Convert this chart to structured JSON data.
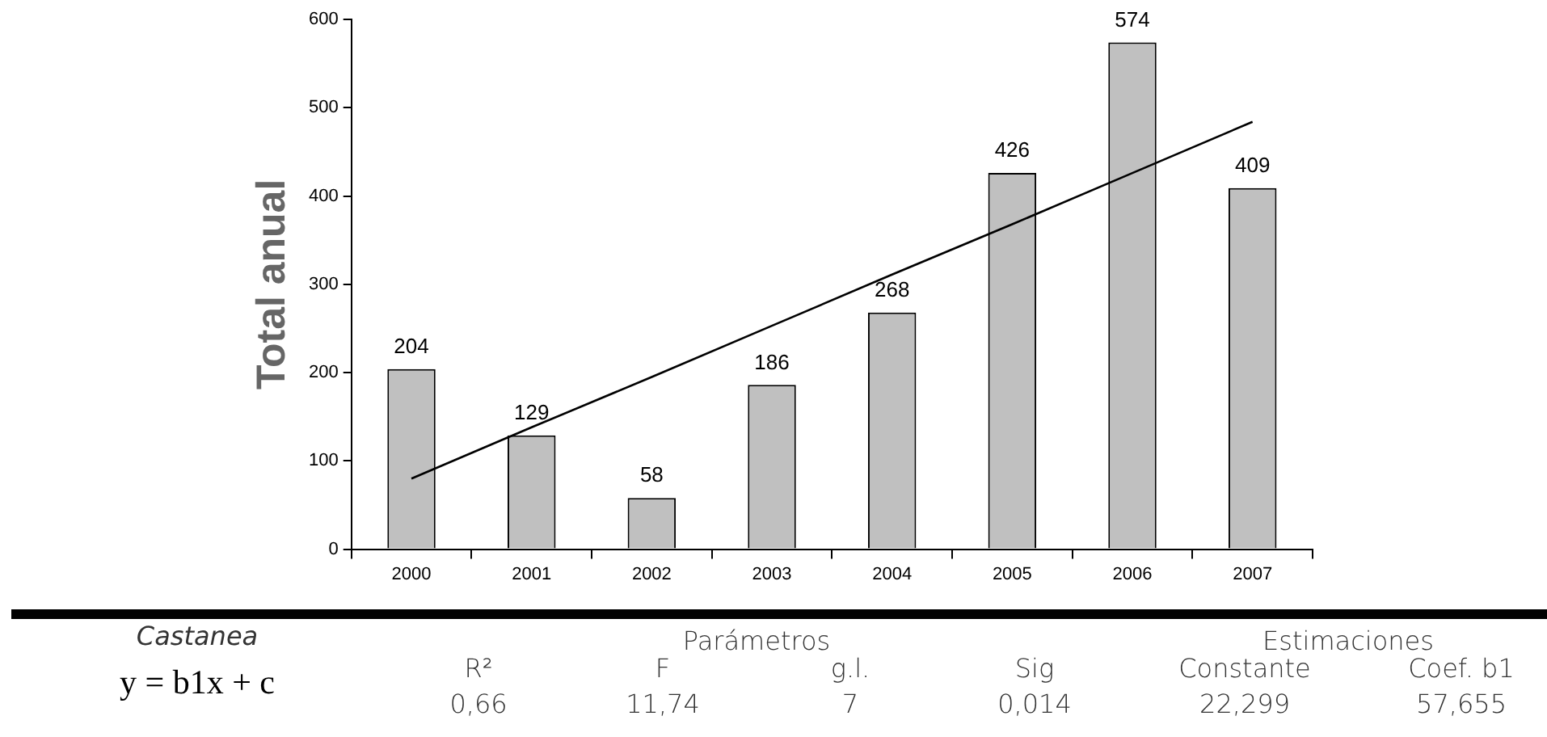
{
  "chart_data": {
    "type": "bar",
    "ylabel": "Total anual",
    "categories": [
      "2000",
      "2001",
      "2002",
      "2003",
      "2004",
      "2005",
      "2006",
      "2007"
    ],
    "series": [
      {
        "color": "#c0c0c0",
        "values": [
          204,
          129,
          58,
          186,
          268,
          426,
          574,
          409
        ],
        "value_labels": [
          "204",
          "129",
          "58",
          "186",
          "268",
          "426",
          "574",
          "409"
        ]
      },
      {
        "type": "line",
        "color": "#000000",
        "values": [
          80,
          138,
          195,
          253,
          311,
          368,
          426,
          484
        ]
      }
    ],
    "ylim": [
      0,
      600
    ],
    "yticks": [
      0,
      100,
      200,
      300,
      400,
      500,
      600
    ],
    "grid": false,
    "legend": false,
    "marker": "none",
    "annotations": [
      "Castanea",
      "Parámetros",
      "Estimaciones",
      "y = b1x + c",
      "R²",
      "F",
      "g.l.",
      "Sig",
      "Constante",
      "Coef. b1",
      "0,66",
      "11,74",
      "7",
      "0,014",
      "22,299",
      "57,655"
    ]
  }
}
